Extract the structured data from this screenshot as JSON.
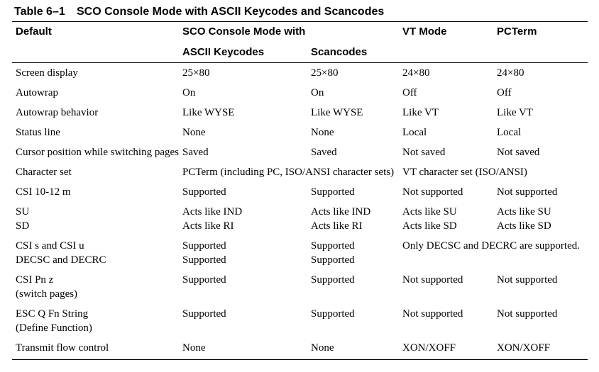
{
  "table": {
    "caption_number": "Table 6–1",
    "caption_title": "SCO Console Mode with ASCII Keycodes and Scancodes",
    "headers": {
      "default": "Default",
      "sco_group": "SCO Console Mode with",
      "ascii": "ASCII Keycodes",
      "scancodes": "Scancodes",
      "vt": "VT Mode",
      "pcterm": "PCTerm"
    },
    "rows": [
      {
        "c0": "Screen display",
        "c1": "25×80",
        "c2": "25×80",
        "c3": "24×80",
        "c4": "24×80"
      },
      {
        "c0": "Autowrap",
        "c1": "On",
        "c2": "On",
        "c3": "Off",
        "c4": "Off"
      },
      {
        "c0": "Autowrap behavior",
        "c1": "Like WYSE",
        "c2": "Like WYSE",
        "c3": "Like VT",
        "c4": "Like VT"
      },
      {
        "c0": "Status line",
        "c1": "None",
        "c2": "None",
        "c3": "Local",
        "c4": "Local"
      },
      {
        "c0": "Cursor position while switching pages",
        "c1": "Saved",
        "c2": "Saved",
        "c3": "Not saved",
        "c4": "Not saved"
      },
      {
        "c0": "Character set",
        "c1": "PCTerm (including PC, ISO/ANSI character sets)",
        "c3": "VT character set (ISO/ANSI)"
      },
      {
        "c0": "CSI 10-12 m",
        "c1": "Supported",
        "c2": "Supported",
        "c3": "Not supported",
        "c4": "Not supported"
      },
      {
        "c0": "SU\nSD",
        "c1": "Acts like IND\nActs like RI",
        "c2": "Acts like IND\nActs like RI",
        "c3": "Acts like SU\nActs like SD",
        "c4": "Acts like SU\nActs like SD"
      },
      {
        "c0": "CSI s and CSI u\nDECSC and DECRC",
        "c1": "Supported\nSupported",
        "c2": "Supported\nSupported",
        "c3": "Only DECSC and DECRC are supported."
      },
      {
        "c0": "CSI Pn z\n(switch pages)",
        "c1": "Supported",
        "c2": "Supported",
        "c3": "Not supported",
        "c4": "Not supported"
      },
      {
        "c0": "ESC Q Fn String\n(Define Function)",
        "c1": "Supported",
        "c2": "Supported",
        "c3": "Not supported",
        "c4": "Not supported"
      },
      {
        "c0": "Transmit flow control",
        "c1": "None",
        "c2": "None",
        "c3": "XON/XOFF",
        "c4": "XON/XOFF"
      }
    ]
  }
}
